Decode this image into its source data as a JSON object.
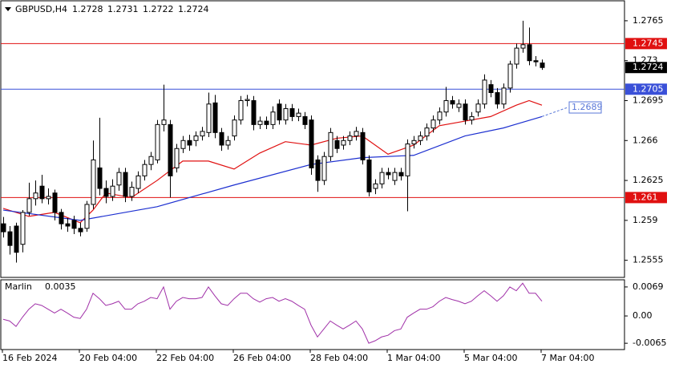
{
  "chart_data": {
    "type": "candlestick",
    "title": "GBPUSD,H4",
    "open": [
      1.2587,
      1.258,
      1.2585,
      1.2569,
      1.2597,
      1.2609,
      1.262,
      1.2609,
      1.2614,
      1.2597,
      1.2587,
      1.259,
      1.2583,
      1.2583,
      1.2604,
      1.2636,
      1.2618,
      1.2611,
      1.2621,
      1.2632,
      1.2611,
      1.2618,
      1.2629,
      1.2639,
      1.2643,
      1.2674,
      1.2674,
      1.2636,
      1.2653,
      1.266,
      1.266,
      1.2664,
      1.2667,
      1.2693,
      1.2667,
      1.2656,
      1.2664,
      1.2678,
      1.2695,
      1.2695,
      1.2674,
      1.2677,
      1.2674,
      1.2692,
      1.2678,
      1.2688,
      1.2681,
      1.2681,
      1.2678,
      1.2643,
      1.2625,
      1.2646,
      1.266,
      1.2656,
      1.266,
      1.2664,
      1.2667,
      1.2643,
      1.2618,
      1.2622,
      1.2632,
      1.2625,
      1.2632,
      1.2629,
      1.2657,
      1.266,
      1.2664,
      1.2671,
      1.2678,
      1.2685,
      1.2695,
      1.2689,
      1.2692,
      1.2678,
      1.2685,
      1.2692,
      1.2709,
      1.2702,
      1.2692,
      1.2706,
      1.2727,
      1.2741,
      1.2744,
      1.273,
      1.2728
    ],
    "high": [
      1.2593,
      1.2585,
      1.2588,
      1.2599,
      1.2623,
      1.2625,
      1.263,
      1.2618,
      1.2617,
      1.26,
      1.2592,
      1.2594,
      1.2588,
      1.2607,
      1.266,
      1.268,
      1.2625,
      1.2626,
      1.2636,
      1.2636,
      1.2624,
      1.2633,
      1.2643,
      1.265,
      1.2678,
      1.2709,
      1.2678,
      1.2657,
      1.2664,
      1.2665,
      1.2668,
      1.2672,
      1.2702,
      1.27,
      1.2671,
      1.2664,
      1.2682,
      1.2699,
      1.27,
      1.2699,
      1.2681,
      1.2681,
      1.269,
      1.2696,
      1.2692,
      1.2692,
      1.2688,
      1.2685,
      1.2682,
      1.2647,
      1.265,
      1.2671,
      1.2664,
      1.2664,
      1.2668,
      1.2672,
      1.2671,
      1.2647,
      1.2626,
      1.2636,
      1.2636,
      1.2636,
      1.2636,
      1.2661,
      1.2664,
      1.2668,
      1.2675,
      1.2682,
      1.2689,
      1.2707,
      1.2699,
      1.2696,
      1.2696,
      1.2685,
      1.2696,
      1.2718,
      1.2713,
      1.2706,
      1.271,
      1.273,
      1.2745,
      1.2765,
      1.2759,
      1.2734,
      1.2731
    ],
    "low": [
      1.2575,
      1.256,
      1.2553,
      1.2562,
      1.2594,
      1.2603,
      1.2605,
      1.2604,
      1.259,
      1.2582,
      1.258,
      1.2578,
      1.2576,
      1.258,
      1.26,
      1.2612,
      1.2605,
      1.2607,
      1.2616,
      1.2606,
      1.2607,
      1.2614,
      1.2625,
      1.2634,
      1.264,
      1.2668,
      1.261,
      1.2632,
      1.2649,
      1.2651,
      1.2655,
      1.266,
      1.2663,
      1.2662,
      1.2651,
      1.2652,
      1.266,
      1.2674,
      1.269,
      1.2669,
      1.267,
      1.267,
      1.267,
      1.2674,
      1.2674,
      1.2677,
      1.2677,
      1.267,
      1.263,
      1.2615,
      1.2621,
      1.2642,
      1.2649,
      1.2652,
      1.2656,
      1.266,
      1.2639,
      1.2611,
      1.2613,
      1.2618,
      1.2626,
      1.2621,
      1.2625,
      1.2598,
      1.2653,
      1.2656,
      1.266,
      1.2667,
      1.2674,
      1.2681,
      1.2688,
      1.2685,
      1.2674,
      1.2674,
      1.2681,
      1.2688,
      1.2698,
      1.2688,
      1.2688,
      1.2702,
      1.2723,
      1.2737,
      1.2726,
      1.2725,
      1.2722
    ],
    "close": [
      1.258,
      1.2568,
      1.2562,
      1.2597,
      1.2609,
      1.2614,
      1.2609,
      1.2611,
      1.2597,
      1.2587,
      1.2585,
      1.2583,
      1.258,
      1.2604,
      1.2643,
      1.2618,
      1.2611,
      1.262,
      1.2632,
      1.2611,
      1.2619,
      1.2629,
      1.2639,
      1.2646,
      1.2674,
      1.2678,
      1.2629,
      1.2653,
      1.266,
      1.2656,
      1.2664,
      1.2668,
      1.2692,
      1.2667,
      1.2656,
      1.266,
      1.2678,
      1.2695,
      1.2696,
      1.2674,
      1.2677,
      1.2674,
      1.2685,
      1.2678,
      1.2688,
      1.2681,
      1.2684,
      1.2674,
      1.2636,
      1.2625,
      1.2646,
      1.2667,
      1.2653,
      1.266,
      1.2664,
      1.2668,
      1.2643,
      1.2615,
      1.2622,
      1.2632,
      1.263,
      1.2632,
      1.2629,
      1.2657,
      1.266,
      1.2664,
      1.2671,
      1.2678,
      1.2685,
      1.2695,
      1.2692,
      1.2692,
      1.2678,
      1.2681,
      1.2692,
      1.2713,
      1.2702,
      1.2692,
      1.2706,
      1.2727,
      1.2741,
      1.2744,
      1.273,
      1.2729,
      1.2724
    ],
    "lines": [
      {
        "color": "#e01010",
        "x": [
          0,
          4,
          8,
          12,
          14,
          16,
          20,
          24,
          28,
          32,
          36,
          40,
          44,
          48,
          52,
          56,
          60,
          64,
          68,
          72,
          76,
          80,
          82,
          84
        ],
        "values": [
          1.26005,
          1.25935,
          1.2597,
          1.25879,
          1.2599,
          1.2614,
          1.261,
          1.2625,
          1.2642,
          1.2642,
          1.2635,
          1.2649,
          1.2659,
          1.2656,
          1.2662,
          1.2664,
          1.2648,
          1.2656,
          1.2673,
          1.2677,
          1.2681,
          1.2691,
          1.2695,
          1.2691
        ]
      },
      {
        "color": "#1c2fd0",
        "x": [
          0,
          12,
          24,
          36,
          48,
          56,
          64,
          72,
          78,
          84
        ],
        "values": [
          1.2599,
          1.259,
          1.2602,
          1.2621,
          1.2639,
          1.2645,
          1.2647,
          1.2664,
          1.2671,
          1.2681
        ]
      }
    ],
    "projection": {
      "color": "#5a78d8",
      "x": 88,
      "value": 1.2689
    },
    "levels": [
      {
        "value": 1.2745,
        "color": "#e01010"
      },
      {
        "value": 1.2705,
        "color": "#3a50d8"
      },
      {
        "value": 1.261,
        "color": "#e01010"
      }
    ],
    "ylim": [
      1.254,
      1.27825
    ],
    "yticks": [
      1.2765,
      1.273,
      1.2695,
      1.266,
      1.2625,
      1.259,
      1.2555
    ],
    "xticks": [
      {
        "value": 0,
        "label": "16 Feb 2024"
      },
      {
        "value": 12,
        "label": "20 Feb 04:00"
      },
      {
        "value": 24,
        "label": "22 Feb 04:00"
      },
      {
        "value": 36,
        "label": "26 Feb 04:00"
      },
      {
        "value": 48,
        "label": "28 Feb 04:00"
      },
      {
        "value": 60,
        "label": "1 Mar 04:00"
      },
      {
        "value": 72,
        "label": "5 Mar 04:00"
      },
      {
        "value": 84,
        "label": "7 Mar 04:00"
      }
    ],
    "indicator": {
      "name": "Marlin",
      "color": "#a030a8",
      "values": [
        -0.0008,
        -0.0012,
        -0.0025,
        -0.0003,
        0.0016,
        0.0029,
        0.0025,
        0.0016,
        0.0007,
        0.0016,
        0.0007,
        -0.0003,
        -0.0006,
        0.0016,
        0.0054,
        0.0041,
        0.0025,
        0.0029,
        0.0035,
        0.0016,
        0.0016,
        0.0029,
        0.0035,
        0.0044,
        0.0041,
        0.0069,
        0.0016,
        0.0035,
        0.0044,
        0.0041,
        0.0041,
        0.0044,
        0.0069,
        0.0048,
        0.0029,
        0.0025,
        0.0041,
        0.0054,
        0.0054,
        0.0041,
        0.0033,
        0.0041,
        0.0044,
        0.0035,
        0.0041,
        0.0035,
        0.0025,
        0.0016,
        -0.0022,
        -0.005,
        -0.0031,
        -0.0012,
        -0.0022,
        -0.0031,
        -0.0022,
        -0.0012,
        -0.0031,
        -0.0065,
        -0.0059,
        -0.005,
        -0.0046,
        -0.0035,
        -0.0031,
        -0.0003,
        0.0007,
        0.0016,
        0.0016,
        0.0022,
        0.0035,
        0.0044,
        0.0039,
        0.0035,
        0.0029,
        0.0035,
        0.0048,
        0.006,
        0.0048,
        0.0035,
        0.0048,
        0.0069,
        0.006,
        0.0078,
        0.0054,
        0.0054,
        0.0035
      ],
      "ylim": [
        -0.008,
        0.0086
      ],
      "yticks": [
        0.0069,
        {
          "value": 0,
          "label": "0.00"
        },
        -0.0065
      ]
    }
  }
}
